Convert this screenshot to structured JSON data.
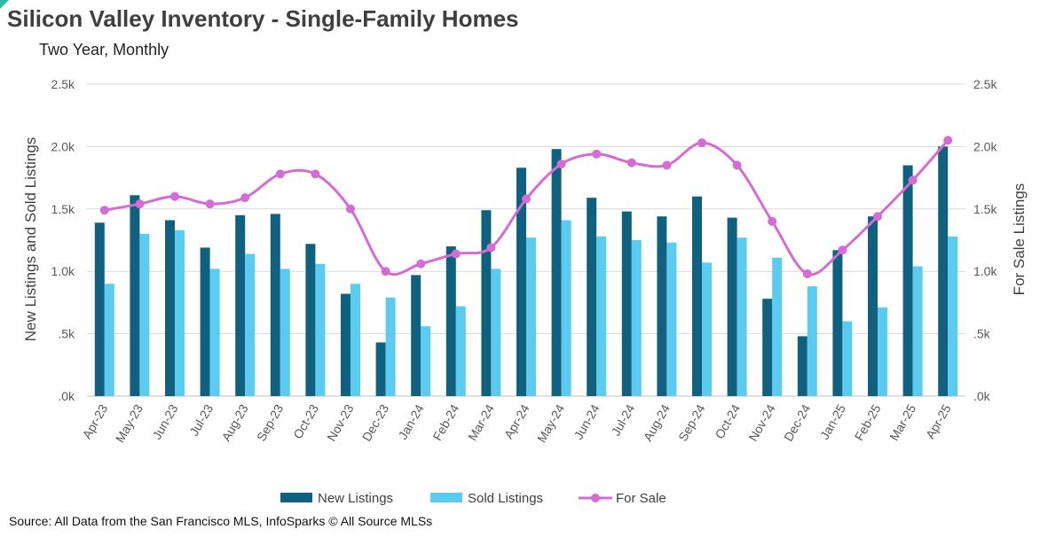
{
  "title": "Silicon Valley Inventory - Single-Family Homes",
  "subtitle": "Two Year, Monthly",
  "source": "Source: All Data from the San Francisco MLS, InfoSparks © All Source MLSs",
  "colors": {
    "new_listings": "#10617f",
    "sold_listings": "#5ccbf0",
    "for_sale": "#d56bd4",
    "grid": "#d9d9d9"
  },
  "chart_data": {
    "type": "bar",
    "title": "Silicon Valley Inventory - Single-Family Homes",
    "subtitle": "Two Year, Monthly",
    "categories": [
      "Apr-23",
      "May-23",
      "Jun-23",
      "Jul-23",
      "Aug-23",
      "Sep-23",
      "Oct-23",
      "Nov-23",
      "Dec-23",
      "Jan-24",
      "Feb-24",
      "Mar-24",
      "Apr-24",
      "May-24",
      "Jun-24",
      "Jul-24",
      "Aug-24",
      "Sep-24",
      "Oct-24",
      "Nov-24",
      "Dec-24",
      "Jan-25",
      "Feb-25",
      "Mar-25",
      "Apr-25"
    ],
    "ylabel": "New Listings and Sold Listings",
    "y2label": "For Sale Listings",
    "ylim": [
      0,
      2500
    ],
    "y2lim": [
      0,
      2500
    ],
    "yticks": [
      ".0k",
      ".5k",
      "1.0k",
      "1.5k",
      "2.0k",
      "2.5k"
    ],
    "grid": true,
    "legend_position": "bottom",
    "series": [
      {
        "name": "New Listings",
        "type": "bar",
        "axis": "left",
        "values": [
          1390,
          1610,
          1410,
          1190,
          1450,
          1460,
          1220,
          820,
          430,
          970,
          1200,
          1490,
          1830,
          1980,
          1590,
          1480,
          1440,
          1600,
          1430,
          780,
          480,
          1170,
          1440,
          1850,
          2000
        ]
      },
      {
        "name": "Sold Listings",
        "type": "bar",
        "axis": "left",
        "values": [
          900,
          1300,
          1330,
          1020,
          1140,
          1020,
          1060,
          900,
          790,
          560,
          720,
          1020,
          1270,
          1410,
          1280,
          1250,
          1230,
          1070,
          1270,
          1110,
          880,
          600,
          710,
          1040,
          1280
        ]
      },
      {
        "name": "For Sale",
        "type": "line",
        "axis": "right",
        "values": [
          1490,
          1540,
          1600,
          1540,
          1590,
          1780,
          1780,
          1500,
          1000,
          1060,
          1140,
          1190,
          1580,
          1860,
          1940,
          1870,
          1850,
          2030,
          1850,
          1400,
          980,
          1170,
          1440,
          1730,
          2050
        ]
      }
    ]
  }
}
